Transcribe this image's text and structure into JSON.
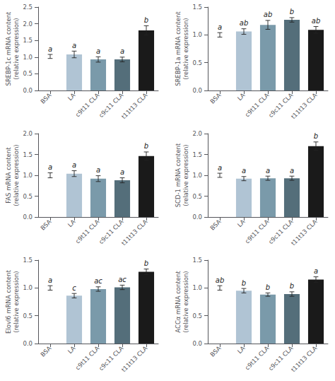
{
  "chart_data": [
    {
      "type": "bar",
      "ylabel": "SREBP-1c mRNA content\n(relative expression)",
      "categories": [
        "BSA",
        "LA",
        "c9t11 CLA",
        "c9c11 CLA",
        "t11t13 CLA"
      ],
      "values": [
        1.02,
        1.08,
        0.93,
        0.93,
        1.8
      ],
      "errors": [
        0.06,
        0.1,
        0.08,
        0.07,
        0.14
      ],
      "letters": [
        "a",
        "a",
        "a",
        "a",
        "b"
      ],
      "colors": [
        "#ffffff",
        "#b0c4d4",
        "#7a9aaa",
        "#546e7a",
        "#1a1a1a"
      ],
      "ylim": [
        0,
        2.5
      ],
      "yticks": [
        {
          "value": 0,
          "label": "0.0"
        },
        0.5,
        {
          "value": 1,
          "label": "1.0"
        },
        1.5,
        {
          "value": 2,
          "label": "2.0"
        },
        2.5
      ],
      "grid": false
    },
    {
      "type": "bar",
      "ylabel": "SREBP-1a mRNA content\n(relative expression)",
      "categories": [
        "BSA",
        "LA",
        "c9t11 CLA",
        "c9c11 CLA",
        "t11t13 CLA"
      ],
      "values": [
        1.0,
        1.06,
        1.18,
        1.27,
        1.09
      ],
      "errors": [
        0.04,
        0.05,
        0.08,
        0.04,
        0.06
      ],
      "letters": [
        "a",
        "ab",
        "ab",
        "b",
        "ab"
      ],
      "colors": [
        "#ffffff",
        "#b0c4d4",
        "#7a9aaa",
        "#546e7a",
        "#1a1a1a"
      ],
      "ylim": [
        0,
        1.5
      ],
      "yticks": [
        {
          "value": 0,
          "label": "0.0"
        },
        0.5,
        {
          "value": 1,
          "label": "1.0"
        },
        1.5
      ],
      "grid": false
    },
    {
      "type": "bar",
      "ylabel": "FAS mRNA content\n(relative expression)",
      "categories": [
        "BSA",
        "LA",
        "c9t11 CLA",
        "c9c11 CLA",
        "t11t13 CLA"
      ],
      "values": [
        1.0,
        1.04,
        0.92,
        0.88,
        1.46
      ],
      "errors": [
        0.06,
        0.07,
        0.07,
        0.06,
        0.1
      ],
      "letters": [
        "a",
        "a",
        "a",
        "a",
        "b"
      ],
      "colors": [
        "#ffffff",
        "#b0c4d4",
        "#7a9aaa",
        "#546e7a",
        "#1a1a1a"
      ],
      "ylim": [
        0,
        2.0
      ],
      "yticks": [
        {
          "value": 0,
          "label": "0.0"
        },
        0.5,
        {
          "value": 1,
          "label": "1.0"
        },
        1.5,
        {
          "value": 2,
          "label": "2.0"
        }
      ],
      "grid": false
    },
    {
      "type": "bar",
      "ylabel": "SCD-1 mRNA content\n(relative expression)",
      "categories": [
        "BSA",
        "LA",
        "c9t11 CLA",
        "c9c11 CLA",
        "t11t13 CLA"
      ],
      "values": [
        1.0,
        0.92,
        0.93,
        0.93,
        1.7
      ],
      "errors": [
        0.05,
        0.05,
        0.05,
        0.05,
        0.1
      ],
      "letters": [
        "a",
        "a",
        "a",
        "a",
        "b"
      ],
      "colors": [
        "#ffffff",
        "#b0c4d4",
        "#7a9aaa",
        "#546e7a",
        "#1a1a1a"
      ],
      "ylim": [
        0,
        2.0
      ],
      "yticks": [
        {
          "value": 0,
          "label": "0.0"
        },
        0.5,
        {
          "value": 1,
          "label": "1.0"
        },
        1.5,
        {
          "value": 2,
          "label": "2.0"
        }
      ],
      "grid": false
    },
    {
      "type": "bar",
      "ylabel": "Elovl6 mRNA content\n(relative expression)",
      "categories": [
        "BSA",
        "LA",
        "c9t11 CLA",
        "c9c11 CLA",
        "t11t13 CLA"
      ],
      "values": [
        1.0,
        0.86,
        0.98,
        1.01,
        1.29
      ],
      "errors": [
        0.04,
        0.04,
        0.04,
        0.04,
        0.05
      ],
      "letters": [
        "a",
        "c",
        "ac",
        "ac",
        "b"
      ],
      "colors": [
        "#ffffff",
        "#b0c4d4",
        "#7a9aaa",
        "#546e7a",
        "#1a1a1a"
      ],
      "ylim": [
        0,
        1.5
      ],
      "yticks": [
        {
          "value": 0,
          "label": "0.0"
        },
        0.5,
        {
          "value": 1,
          "label": "1.0"
        },
        1.5
      ],
      "grid": false
    },
    {
      "type": "bar",
      "ylabel": "ACCα mRNA content\n(relative expression)",
      "categories": [
        "BSA",
        "LA",
        "c9t11 CLA",
        "c9c11 CLA",
        "t11t13 CLA"
      ],
      "values": [
        1.0,
        0.95,
        0.88,
        0.89,
        1.15
      ],
      "errors": [
        0.04,
        0.04,
        0.03,
        0.04,
        0.05
      ],
      "letters": [
        "ab",
        "b",
        "b",
        "b",
        "a"
      ],
      "colors": [
        "#ffffff",
        "#b0c4d4",
        "#7a9aaa",
        "#546e7a",
        "#1a1a1a"
      ],
      "ylim": [
        0,
        1.5
      ],
      "yticks": [
        {
          "value": 0,
          "label": "0.0"
        },
        0.5,
        {
          "value": 1,
          "label": "1.0"
        },
        1.5
      ],
      "grid": false
    }
  ]
}
